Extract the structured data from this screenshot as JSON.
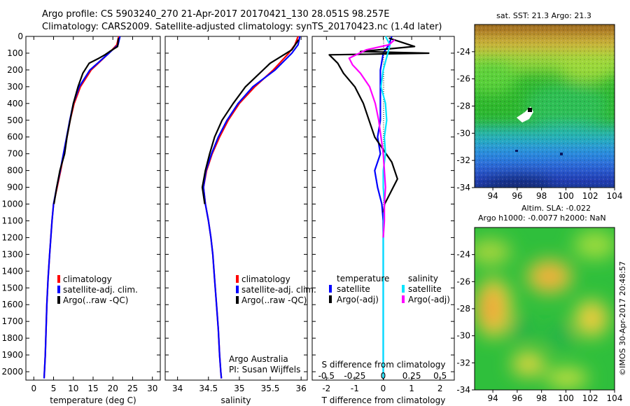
{
  "header": {
    "line1": "Argo profile: CS 5903240_270 21-Apr-2017 20170421_130 28.051S 98.257E",
    "line2": "Climatology: CARS2009. Satellite-adjusted climatology: synTS_20170423.nc (1.4d later)"
  },
  "colors": {
    "climatology": "#ff0000",
    "satellite": "#0000ff",
    "argo": "#000000",
    "salinity_satellite": "#00e5ff",
    "salinity_argo": "#ff00ff"
  },
  "chart_data": [
    {
      "type": "line",
      "name": "temperature-panel",
      "xlabel": "temperature (deg C)",
      "xlim": [
        -2,
        32
      ],
      "ylim": [
        0,
        2050
      ],
      "xticks": [
        0,
        5,
        10,
        15,
        20,
        25,
        30
      ],
      "yticks": [
        0,
        100,
        200,
        300,
        400,
        500,
        600,
        700,
        800,
        900,
        1000,
        1100,
        1200,
        1300,
        1400,
        1500,
        1600,
        1700,
        1800,
        1900,
        2000
      ],
      "legend": [
        "climatology",
        "satellite-adj. clim.",
        "Argo(..raw -QC)"
      ],
      "series": [
        {
          "name": "climatology",
          "color": "#ff0000",
          "x": [
            21.5,
            21.0,
            19.0,
            14.5,
            11.8,
            10.2,
            9.2,
            8.4,
            7.6,
            6.8,
            5.9,
            5.0,
            4.6,
            4.3,
            4.0,
            3.6,
            3.3,
            3.1,
            2.9,
            2.7,
            2.6
          ],
          "y": [
            0,
            50,
            100,
            200,
            300,
            400,
            500,
            600,
            700,
            800,
            900,
            1000,
            1100,
            1200,
            1300,
            1450,
            1600,
            1750,
            1900,
            2000,
            2040
          ]
        },
        {
          "name": "satellite-adj. clim.",
          "color": "#0000ff",
          "x": [
            21.8,
            21.3,
            19.0,
            14.2,
            11.5,
            10.0,
            9.1,
            8.3,
            7.5,
            6.7,
            5.8,
            5.0,
            4.6,
            4.3,
            4.0,
            3.6,
            3.3,
            3.1,
            2.9,
            2.7,
            2.6
          ],
          "y": [
            0,
            50,
            100,
            200,
            300,
            400,
            500,
            600,
            700,
            800,
            900,
            1000,
            1100,
            1200,
            1300,
            1450,
            1600,
            1750,
            1900,
            2000,
            2040
          ]
        },
        {
          "name": "Argo(..raw -QC)",
          "color": "#000000",
          "x": [
            21.4,
            21.2,
            19.2,
            18.0,
            16.5,
            14.0,
            12.4,
            11.2,
            10.0,
            9.2,
            8.4,
            7.8,
            6.6,
            5.8,
            5.1
          ],
          "y": [
            10,
            60,
            90,
            110,
            130,
            160,
            220,
            300,
            400,
            500,
            600,
            700,
            800,
            900,
            1000
          ]
        }
      ]
    },
    {
      "type": "line",
      "name": "salinity-panel",
      "xlabel": "salinity",
      "xlim": [
        33.8,
        36.1
      ],
      "ylim": [
        0,
        2050
      ],
      "xticks": [
        34,
        34.5,
        35,
        35.5,
        36
      ],
      "legend": [
        "climatology",
        "satellite-adj. clim.",
        "Argo(..raw -QC)"
      ],
      "annotation": [
        "Argo Australia",
        "PI: Susan Wijffels"
      ],
      "series": [
        {
          "name": "climatology",
          "color": "#ff0000",
          "x": [
            35.95,
            35.9,
            35.8,
            35.55,
            35.25,
            35.0,
            34.82,
            34.68,
            34.56,
            34.47,
            34.42,
            34.45,
            34.5,
            34.54,
            34.57,
            34.6,
            34.63,
            34.66,
            34.68,
            34.7,
            34.71
          ],
          "y": [
            0,
            50,
            100,
            200,
            300,
            400,
            500,
            600,
            700,
            800,
            900,
            1000,
            1100,
            1200,
            1300,
            1450,
            1600,
            1750,
            1900,
            2000,
            2040
          ]
        },
        {
          "name": "satellite-adj. clim.",
          "color": "#0000ff",
          "x": [
            35.98,
            35.95,
            35.85,
            35.58,
            35.22,
            34.98,
            34.8,
            34.66,
            34.55,
            34.46,
            34.42,
            34.45,
            34.5,
            34.54,
            34.57,
            34.6,
            34.63,
            34.66,
            34.68,
            34.7,
            34.71
          ],
          "y": [
            0,
            50,
            100,
            200,
            300,
            400,
            500,
            600,
            700,
            800,
            900,
            1000,
            1100,
            1200,
            1300,
            1450,
            1600,
            1750,
            1900,
            2000,
            2040
          ]
        },
        {
          "name": "Argo(..raw -QC)",
          "color": "#000000",
          "x": [
            35.96,
            35.85,
            35.5,
            35.1,
            34.9,
            34.72,
            34.6,
            34.52,
            34.45,
            34.4,
            34.44
          ],
          "y": [
            20,
            80,
            160,
            300,
            400,
            500,
            600,
            700,
            800,
            900,
            1000
          ]
        }
      ]
    },
    {
      "type": "line",
      "name": "difference-panel",
      "xlabel": "T difference from climatology",
      "xlabel_top": "S difference from climatology",
      "xlim": [
        -2.5,
        2.5
      ],
      "s_xlim": [
        -0.625,
        0.625
      ],
      "ylim": [
        0,
        2050
      ],
      "xticks": [
        -2,
        -1,
        0,
        1,
        2
      ],
      "s_xticks": [
        -0.5,
        -0.25,
        0,
        0.25,
        0.5
      ],
      "s_tick_labels": [
        "-0.5",
        "-0.25",
        "0",
        "0.25",
        "0.5"
      ],
      "legend_headers": [
        "temperature",
        "salinity"
      ],
      "legend": [
        "satellite",
        "Argo(-adj)",
        "satellite",
        "Argo(-adj)"
      ],
      "series": [
        {
          "name": "temperature satellite",
          "color": "#0000ff",
          "x": [
            0.3,
            0.2,
            0.0,
            -0.1,
            -0.1,
            -0.1,
            -0.1,
            -0.2,
            -0.1,
            -0.3,
            -0.2,
            -0.05,
            0.0,
            0.0,
            0.0,
            0.0,
            0.0,
            0.0
          ],
          "y": [
            0,
            50,
            100,
            200,
            300,
            400,
            500,
            600,
            700,
            800,
            900,
            1000,
            1100,
            1200,
            1400,
            1600,
            1800,
            2040
          ]
        },
        {
          "name": "temperature Argo(-adj)",
          "color": "#000000",
          "x": [
            0.2,
            1.1,
            -0.8,
            1.6,
            -1.9,
            -1.6,
            -1.4,
            -1.0,
            -0.7,
            -0.5,
            -0.3,
            -0.1,
            0.1,
            0.3,
            0.5,
            0.2,
            0.05,
            0.0
          ],
          "y": [
            10,
            60,
            90,
            100,
            110,
            160,
            220,
            300,
            400,
            500,
            600,
            650,
            700,
            750,
            850,
            950,
            1000,
            1050
          ]
        },
        {
          "name": "salinity satellite",
          "color": "#00e5ff",
          "x": [
            0.02,
            0.06,
            0.04,
            0.0,
            -0.02,
            0.02,
            0.03,
            0.01,
            0.02,
            0.0,
            0.0,
            0.01,
            0.0,
            0.0,
            0.0,
            0.0,
            0.0
          ],
          "y": [
            0,
            50,
            100,
            200,
            300,
            400,
            500,
            600,
            700,
            800,
            900,
            1000,
            1200,
            1400,
            1600,
            1800,
            2040
          ]
        },
        {
          "name": "salinity Argo(-adj)",
          "color": "#ff00ff",
          "x": [
            0.1,
            0.05,
            -0.15,
            -0.3,
            -0.27,
            -0.2,
            -0.12,
            -0.07,
            -0.04,
            -0.02,
            0.0,
            0.01,
            0.02,
            0.01,
            0.01,
            0.0
          ],
          "y": [
            20,
            50,
            80,
            130,
            170,
            220,
            300,
            400,
            500,
            600,
            700,
            800,
            900,
            1000,
            1100,
            1200
          ]
        }
      ]
    },
    {
      "type": "heatmap",
      "name": "sst-map",
      "title": "sat. SST: 21.3  Argo: 21.3",
      "xlim": [
        92.5,
        104
      ],
      "ylim": [
        -34,
        -22
      ],
      "xticks": [
        94,
        96,
        98,
        100,
        102,
        104
      ],
      "yticks": [
        -24,
        -26,
        -28,
        -30,
        -32,
        -34
      ]
    },
    {
      "type": "heatmap",
      "name": "sla-map",
      "title_lines": [
        "Altim. SLA: -0.022",
        "Argo h1000: -0.0077 h2000: NaN"
      ],
      "xlim": [
        92.5,
        104
      ],
      "ylim": [
        -34,
        -22
      ],
      "xticks": [
        94,
        96,
        98,
        100,
        102,
        104
      ],
      "yticks": [
        -24,
        -26,
        -28,
        -30,
        -32,
        -34
      ]
    }
  ],
  "side_credit": "©IMOS 30-Apr-2017 20:48:57"
}
